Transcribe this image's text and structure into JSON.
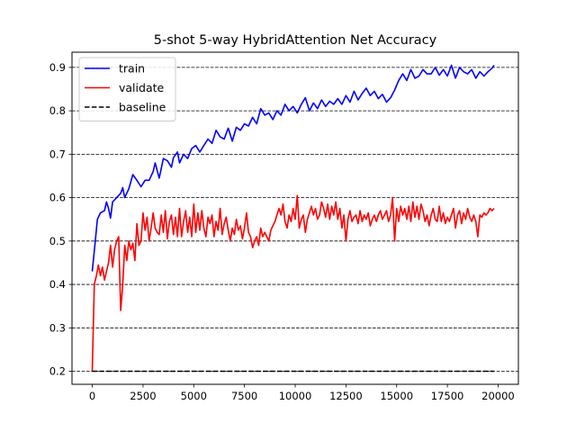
{
  "chart_data": {
    "type": "line",
    "title": "5-shot 5-way HybridAttention Net Accuracy",
    "xlabel": "",
    "ylabel": "",
    "xlim": [
      -1000,
      21000
    ],
    "ylim": [
      0.17,
      0.935
    ],
    "xticks": [
      "0",
      "2500",
      "5000",
      "7500",
      "10000",
      "12500",
      "15000",
      "17500",
      "20000"
    ],
    "yticks": [
      "0.2",
      "0.3",
      "0.4",
      "0.5",
      "0.6",
      "0.7",
      "0.8",
      "0.9"
    ],
    "grid": "horizontal-dashed",
    "legend_position": "top-left",
    "series": [
      {
        "name": "train",
        "color": "#0000ff",
        "style": "solid",
        "points": [
          [
            0,
            0.43
          ],
          [
            150,
            0.5
          ],
          [
            250,
            0.55
          ],
          [
            400,
            0.565
          ],
          [
            600,
            0.57
          ],
          [
            700,
            0.59
          ],
          [
            800,
            0.575
          ],
          [
            900,
            0.553
          ],
          [
            1000,
            0.59
          ],
          [
            1200,
            0.6
          ],
          [
            1400,
            0.61
          ],
          [
            1500,
            0.623
          ],
          [
            1600,
            0.6
          ],
          [
            1800,
            0.62
          ],
          [
            2000,
            0.653
          ],
          [
            2200,
            0.64
          ],
          [
            2400,
            0.625
          ],
          [
            2600,
            0.64
          ],
          [
            2800,
            0.64
          ],
          [
            3000,
            0.66
          ],
          [
            3100,
            0.68
          ],
          [
            3300,
            0.645
          ],
          [
            3500,
            0.69
          ],
          [
            3700,
            0.685
          ],
          [
            3900,
            0.67
          ],
          [
            4000,
            0.692
          ],
          [
            4200,
            0.705
          ],
          [
            4300,
            0.68
          ],
          [
            4500,
            0.7
          ],
          [
            4700,
            0.69
          ],
          [
            4900,
            0.713
          ],
          [
            5100,
            0.72
          ],
          [
            5300,
            0.705
          ],
          [
            5500,
            0.72
          ],
          [
            5700,
            0.735
          ],
          [
            5900,
            0.725
          ],
          [
            6100,
            0.755
          ],
          [
            6300,
            0.74
          ],
          [
            6500,
            0.735
          ],
          [
            6700,
            0.76
          ],
          [
            6900,
            0.73
          ],
          [
            7100,
            0.762
          ],
          [
            7300,
            0.755
          ],
          [
            7500,
            0.77
          ],
          [
            7700,
            0.765
          ],
          [
            7900,
            0.785
          ],
          [
            8100,
            0.77
          ],
          [
            8300,
            0.805
          ],
          [
            8500,
            0.79
          ],
          [
            8700,
            0.795
          ],
          [
            8900,
            0.78
          ],
          [
            9100,
            0.8
          ],
          [
            9300,
            0.79
          ],
          [
            9500,
            0.815
          ],
          [
            9700,
            0.8
          ],
          [
            9900,
            0.81
          ],
          [
            10100,
            0.795
          ],
          [
            10300,
            0.815
          ],
          [
            10500,
            0.83
          ],
          [
            10700,
            0.8
          ],
          [
            10900,
            0.818
          ],
          [
            11100,
            0.805
          ],
          [
            11300,
            0.825
          ],
          [
            11500,
            0.81
          ],
          [
            11700,
            0.822
          ],
          [
            11900,
            0.815
          ],
          [
            12100,
            0.828
          ],
          [
            12300,
            0.815
          ],
          [
            12500,
            0.835
          ],
          [
            12700,
            0.82
          ],
          [
            12900,
            0.845
          ],
          [
            13100,
            0.825
          ],
          [
            13300,
            0.84
          ],
          [
            13500,
            0.852
          ],
          [
            13700,
            0.835
          ],
          [
            13900,
            0.845
          ],
          [
            14100,
            0.828
          ],
          [
            14300,
            0.838
          ],
          [
            14500,
            0.82
          ],
          [
            14700,
            0.83
          ],
          [
            14900,
            0.848
          ],
          [
            15100,
            0.87
          ],
          [
            15300,
            0.885
          ],
          [
            15500,
            0.87
          ],
          [
            15700,
            0.895
          ],
          [
            15900,
            0.875
          ],
          [
            16100,
            0.88
          ],
          [
            16300,
            0.895
          ],
          [
            16500,
            0.885
          ],
          [
            16700,
            0.885
          ],
          [
            16900,
            0.9
          ],
          [
            17100,
            0.882
          ],
          [
            17300,
            0.895
          ],
          [
            17500,
            0.88
          ],
          [
            17700,
            0.905
          ],
          [
            17900,
            0.875
          ],
          [
            18100,
            0.9
          ],
          [
            18300,
            0.89
          ],
          [
            18500,
            0.885
          ],
          [
            18700,
            0.895
          ],
          [
            18900,
            0.875
          ],
          [
            19100,
            0.89
          ],
          [
            19300,
            0.88
          ],
          [
            19500,
            0.89
          ],
          [
            19700,
            0.898
          ],
          [
            19800,
            0.905
          ]
        ]
      },
      {
        "name": "validate",
        "color": "#ff0000",
        "style": "solid",
        "points": [
          [
            0,
            0.2
          ],
          [
            100,
            0.4
          ],
          [
            200,
            0.42
          ],
          [
            300,
            0.445
          ],
          [
            400,
            0.42
          ],
          [
            500,
            0.44
          ],
          [
            600,
            0.41
          ],
          [
            700,
            0.43
          ],
          [
            800,
            0.45
          ],
          [
            900,
            0.49
          ],
          [
            1000,
            0.44
          ],
          [
            1100,
            0.48
          ],
          [
            1200,
            0.5
          ],
          [
            1300,
            0.51
          ],
          [
            1400,
            0.34
          ],
          [
            1500,
            0.4
          ],
          [
            1600,
            0.49
          ],
          [
            1700,
            0.455
          ],
          [
            1800,
            0.5
          ],
          [
            1900,
            0.48
          ],
          [
            2000,
            0.495
          ],
          [
            2100,
            0.455
          ],
          [
            2200,
            0.54
          ],
          [
            2300,
            0.49
          ],
          [
            2400,
            0.5
          ],
          [
            2500,
            0.565
          ],
          [
            2600,
            0.525
          ],
          [
            2700,
            0.555
          ],
          [
            2800,
            0.5
          ],
          [
            2900,
            0.53
          ],
          [
            3000,
            0.565
          ],
          [
            3100,
            0.53
          ],
          [
            3200,
            0.52
          ],
          [
            3300,
            0.515
          ],
          [
            3400,
            0.56
          ],
          [
            3500,
            0.52
          ],
          [
            3600,
            0.57
          ],
          [
            3700,
            0.505
          ],
          [
            3800,
            0.545
          ],
          [
            3900,
            0.56
          ],
          [
            4000,
            0.515
          ],
          [
            4100,
            0.555
          ],
          [
            4200,
            0.51
          ],
          [
            4300,
            0.575
          ],
          [
            4400,
            0.51
          ],
          [
            4500,
            0.545
          ],
          [
            4600,
            0.57
          ],
          [
            4700,
            0.52
          ],
          [
            4800,
            0.555
          ],
          [
            4900,
            0.51
          ],
          [
            5000,
            0.585
          ],
          [
            5100,
            0.52
          ],
          [
            5200,
            0.565
          ],
          [
            5300,
            0.525
          ],
          [
            5400,
            0.57
          ],
          [
            5500,
            0.53
          ],
          [
            5600,
            0.51
          ],
          [
            5700,
            0.555
          ],
          [
            5800,
            0.54
          ],
          [
            5900,
            0.56
          ],
          [
            6000,
            0.51
          ],
          [
            6100,
            0.545
          ],
          [
            6200,
            0.525
          ],
          [
            6300,
            0.575
          ],
          [
            6400,
            0.515
          ],
          [
            6500,
            0.54
          ],
          [
            6600,
            0.555
          ],
          [
            6700,
            0.525
          ],
          [
            6800,
            0.5
          ],
          [
            6900,
            0.53
          ],
          [
            7000,
            0.515
          ],
          [
            7100,
            0.55
          ],
          [
            7200,
            0.525
          ],
          [
            7300,
            0.535
          ],
          [
            7400,
            0.505
          ],
          [
            7500,
            0.53
          ],
          [
            7600,
            0.565
          ],
          [
            7700,
            0.52
          ],
          [
            7800,
            0.51
          ],
          [
            7900,
            0.485
          ],
          [
            8000,
            0.5
          ],
          [
            8100,
            0.51
          ],
          [
            8200,
            0.49
          ],
          [
            8300,
            0.53
          ],
          [
            8400,
            0.51
          ],
          [
            8500,
            0.52
          ],
          [
            8600,
            0.51
          ],
          [
            8700,
            0.5
          ],
          [
            8800,
            0.525
          ],
          [
            8900,
            0.535
          ],
          [
            9000,
            0.545
          ],
          [
            9100,
            0.56
          ],
          [
            9200,
            0.575
          ],
          [
            9300,
            0.56
          ],
          [
            9400,
            0.585
          ],
          [
            9500,
            0.545
          ],
          [
            9600,
            0.53
          ],
          [
            9700,
            0.56
          ],
          [
            9800,
            0.545
          ],
          [
            9900,
            0.575
          ],
          [
            10000,
            0.55
          ],
          [
            10100,
            0.605
          ],
          [
            10200,
            0.53
          ],
          [
            10300,
            0.55
          ],
          [
            10400,
            0.56
          ],
          [
            10500,
            0.52
          ],
          [
            10600,
            0.55
          ],
          [
            10700,
            0.565
          ],
          [
            10800,
            0.58
          ],
          [
            10900,
            0.56
          ],
          [
            11000,
            0.575
          ],
          [
            11100,
            0.55
          ],
          [
            11200,
            0.56
          ],
          [
            11300,
            0.59
          ],
          [
            11400,
            0.575
          ],
          [
            11500,
            0.555
          ],
          [
            11600,
            0.585
          ],
          [
            11700,
            0.55
          ],
          [
            11800,
            0.58
          ],
          [
            11900,
            0.56
          ],
          [
            12000,
            0.59
          ],
          [
            12100,
            0.55
          ],
          [
            12200,
            0.575
          ],
          [
            12300,
            0.53
          ],
          [
            12400,
            0.56
          ],
          [
            12500,
            0.5
          ],
          [
            12600,
            0.55
          ],
          [
            12700,
            0.57
          ],
          [
            12800,
            0.545
          ],
          [
            12900,
            0.555
          ],
          [
            13000,
            0.56
          ],
          [
            13100,
            0.54
          ],
          [
            13200,
            0.57
          ],
          [
            13300,
            0.545
          ],
          [
            13400,
            0.56
          ],
          [
            13500,
            0.55
          ],
          [
            13600,
            0.565
          ],
          [
            13700,
            0.535
          ],
          [
            13800,
            0.55
          ],
          [
            13900,
            0.56
          ],
          [
            14000,
            0.545
          ],
          [
            14100,
            0.56
          ],
          [
            14200,
            0.57
          ],
          [
            14300,
            0.55
          ],
          [
            14400,
            0.56
          ],
          [
            14500,
            0.57
          ],
          [
            14600,
            0.545
          ],
          [
            14700,
            0.56
          ],
          [
            14800,
            0.6
          ],
          [
            14900,
            0.5
          ],
          [
            15000,
            0.575
          ],
          [
            15100,
            0.545
          ],
          [
            15200,
            0.58
          ],
          [
            15300,
            0.56
          ],
          [
            15400,
            0.575
          ],
          [
            15500,
            0.55
          ],
          [
            15600,
            0.58
          ],
          [
            15700,
            0.545
          ],
          [
            15800,
            0.59
          ],
          [
            15900,
            0.555
          ],
          [
            16000,
            0.58
          ],
          [
            16100,
            0.55
          ],
          [
            16200,
            0.585
          ],
          [
            16300,
            0.57
          ],
          [
            16400,
            0.545
          ],
          [
            16500,
            0.56
          ],
          [
            16600,
            0.535
          ],
          [
            16700,
            0.56
          ],
          [
            16800,
            0.575
          ],
          [
            16900,
            0.55
          ],
          [
            17000,
            0.545
          ],
          [
            17100,
            0.58
          ],
          [
            17200,
            0.545
          ],
          [
            17300,
            0.565
          ],
          [
            17400,
            0.54
          ],
          [
            17500,
            0.555
          ],
          [
            17600,
            0.545
          ],
          [
            17700,
            0.56
          ],
          [
            17800,
            0.575
          ],
          [
            17900,
            0.53
          ],
          [
            18000,
            0.56
          ],
          [
            18100,
            0.57
          ],
          [
            18200,
            0.54
          ],
          [
            18300,
            0.565
          ],
          [
            18400,
            0.55
          ],
          [
            18500,
            0.575
          ],
          [
            18600,
            0.555
          ],
          [
            18700,
            0.545
          ],
          [
            18800,
            0.56
          ],
          [
            18900,
            0.545
          ],
          [
            19000,
            0.51
          ],
          [
            19100,
            0.56
          ],
          [
            19200,
            0.555
          ],
          [
            19300,
            0.565
          ],
          [
            19400,
            0.56
          ],
          [
            19500,
            0.565
          ],
          [
            19600,
            0.575
          ],
          [
            19700,
            0.57
          ],
          [
            19800,
            0.575
          ]
        ]
      },
      {
        "name": "baseline",
        "color": "#000000",
        "style": "dashed",
        "points": [
          [
            0,
            0.2
          ],
          [
            19800,
            0.2
          ]
        ]
      }
    ]
  }
}
